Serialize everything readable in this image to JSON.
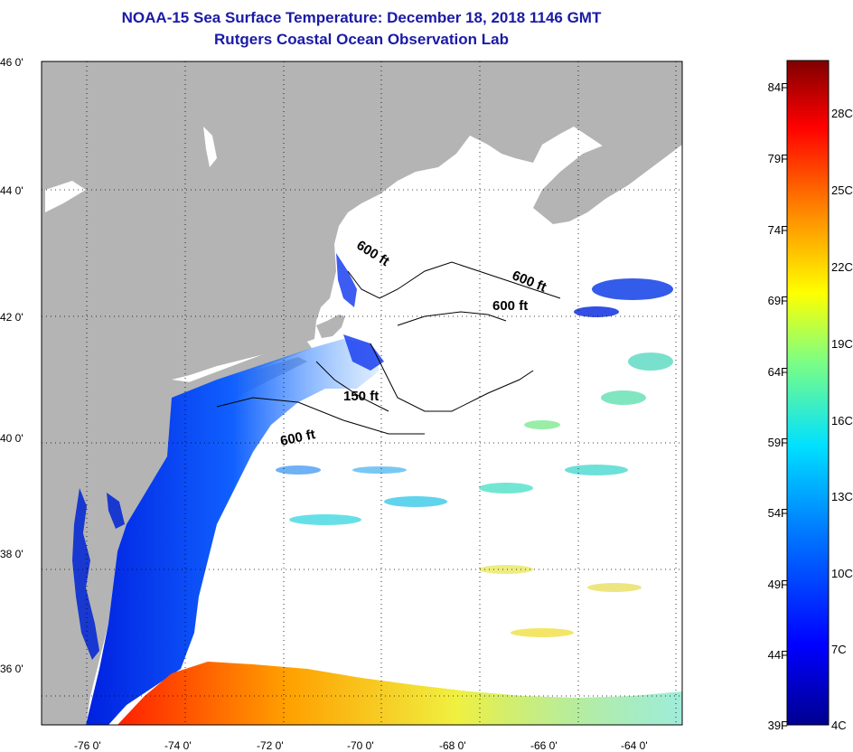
{
  "title_line1": "NOAA-15 Sea Surface Temperature:  December 18, 2018 1146 GMT",
  "title_line2": "Rutgers Coastal Ocean Observation Lab",
  "lat_labels": [
    "46 0'",
    "44 0'",
    "42 0'",
    "40 0'",
    "38 0'",
    "36 0'"
  ],
  "lon_labels": [
    "-76 0'",
    "-74 0'",
    "-72 0'",
    "-70 0'",
    "-68 0'",
    "-66 0'",
    "-64 0'"
  ],
  "colorbar_f": [
    "84F",
    "79F",
    "74F",
    "69F",
    "64F",
    "59F",
    "54F",
    "49F",
    "44F",
    "39F"
  ],
  "colorbar_c": [
    "28C",
    "25C",
    "22C",
    "19C",
    "16C",
    "13C",
    "10C",
    "7C",
    "4C"
  ],
  "contours": [
    "600 ft",
    "600 ft",
    "600 ft",
    "150 ft",
    "600 ft"
  ],
  "colors": {
    "land": "#b4b4b4",
    "title": "#1a1aa6",
    "ocean_nodata": "#ffffff"
  }
}
